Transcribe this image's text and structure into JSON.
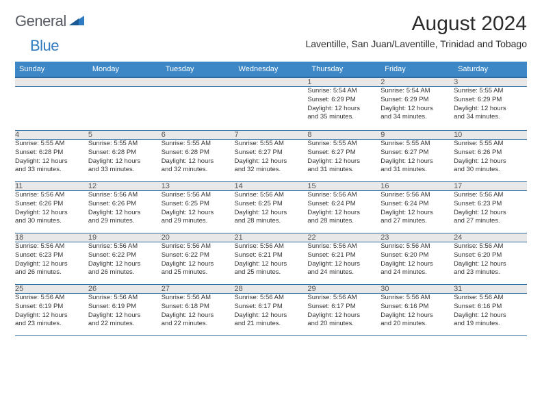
{
  "brand": {
    "part1": "General",
    "part2": "Blue",
    "color_gray": "#555a63",
    "color_blue": "#2f7bbf"
  },
  "title": "August 2024",
  "location": "Laventille, San Juan/Laventille, Trinidad and Tobago",
  "colors": {
    "header_bg": "#3d87c7",
    "header_border": "#2a6aa0",
    "daynum_bg": "#e8e8e8",
    "text": "#2b2b2b"
  },
  "weekdays": [
    "Sunday",
    "Monday",
    "Tuesday",
    "Wednesday",
    "Thursday",
    "Friday",
    "Saturday"
  ],
  "weeks": [
    [
      null,
      null,
      null,
      null,
      {
        "n": "1",
        "sr": "5:54 AM",
        "ss": "6:29 PM",
        "dl": "12 hours and 35 minutes."
      },
      {
        "n": "2",
        "sr": "5:54 AM",
        "ss": "6:29 PM",
        "dl": "12 hours and 34 minutes."
      },
      {
        "n": "3",
        "sr": "5:55 AM",
        "ss": "6:29 PM",
        "dl": "12 hours and 34 minutes."
      }
    ],
    [
      {
        "n": "4",
        "sr": "5:55 AM",
        "ss": "6:28 PM",
        "dl": "12 hours and 33 minutes."
      },
      {
        "n": "5",
        "sr": "5:55 AM",
        "ss": "6:28 PM",
        "dl": "12 hours and 33 minutes."
      },
      {
        "n": "6",
        "sr": "5:55 AM",
        "ss": "6:28 PM",
        "dl": "12 hours and 32 minutes."
      },
      {
        "n": "7",
        "sr": "5:55 AM",
        "ss": "6:27 PM",
        "dl": "12 hours and 32 minutes."
      },
      {
        "n": "8",
        "sr": "5:55 AM",
        "ss": "6:27 PM",
        "dl": "12 hours and 31 minutes."
      },
      {
        "n": "9",
        "sr": "5:55 AM",
        "ss": "6:27 PM",
        "dl": "12 hours and 31 minutes."
      },
      {
        "n": "10",
        "sr": "5:55 AM",
        "ss": "6:26 PM",
        "dl": "12 hours and 30 minutes."
      }
    ],
    [
      {
        "n": "11",
        "sr": "5:56 AM",
        "ss": "6:26 PM",
        "dl": "12 hours and 30 minutes."
      },
      {
        "n": "12",
        "sr": "5:56 AM",
        "ss": "6:26 PM",
        "dl": "12 hours and 29 minutes."
      },
      {
        "n": "13",
        "sr": "5:56 AM",
        "ss": "6:25 PM",
        "dl": "12 hours and 29 minutes."
      },
      {
        "n": "14",
        "sr": "5:56 AM",
        "ss": "6:25 PM",
        "dl": "12 hours and 28 minutes."
      },
      {
        "n": "15",
        "sr": "5:56 AM",
        "ss": "6:24 PM",
        "dl": "12 hours and 28 minutes."
      },
      {
        "n": "16",
        "sr": "5:56 AM",
        "ss": "6:24 PM",
        "dl": "12 hours and 27 minutes."
      },
      {
        "n": "17",
        "sr": "5:56 AM",
        "ss": "6:23 PM",
        "dl": "12 hours and 27 minutes."
      }
    ],
    [
      {
        "n": "18",
        "sr": "5:56 AM",
        "ss": "6:23 PM",
        "dl": "12 hours and 26 minutes."
      },
      {
        "n": "19",
        "sr": "5:56 AM",
        "ss": "6:22 PM",
        "dl": "12 hours and 26 minutes."
      },
      {
        "n": "20",
        "sr": "5:56 AM",
        "ss": "6:22 PM",
        "dl": "12 hours and 25 minutes."
      },
      {
        "n": "21",
        "sr": "5:56 AM",
        "ss": "6:21 PM",
        "dl": "12 hours and 25 minutes."
      },
      {
        "n": "22",
        "sr": "5:56 AM",
        "ss": "6:21 PM",
        "dl": "12 hours and 24 minutes."
      },
      {
        "n": "23",
        "sr": "5:56 AM",
        "ss": "6:20 PM",
        "dl": "12 hours and 24 minutes."
      },
      {
        "n": "24",
        "sr": "5:56 AM",
        "ss": "6:20 PM",
        "dl": "12 hours and 23 minutes."
      }
    ],
    [
      {
        "n": "25",
        "sr": "5:56 AM",
        "ss": "6:19 PM",
        "dl": "12 hours and 23 minutes."
      },
      {
        "n": "26",
        "sr": "5:56 AM",
        "ss": "6:19 PM",
        "dl": "12 hours and 22 minutes."
      },
      {
        "n": "27",
        "sr": "5:56 AM",
        "ss": "6:18 PM",
        "dl": "12 hours and 22 minutes."
      },
      {
        "n": "28",
        "sr": "5:56 AM",
        "ss": "6:17 PM",
        "dl": "12 hours and 21 minutes."
      },
      {
        "n": "29",
        "sr": "5:56 AM",
        "ss": "6:17 PM",
        "dl": "12 hours and 20 minutes."
      },
      {
        "n": "30",
        "sr": "5:56 AM",
        "ss": "6:16 PM",
        "dl": "12 hours and 20 minutes."
      },
      {
        "n": "31",
        "sr": "5:56 AM",
        "ss": "6:16 PM",
        "dl": "12 hours and 19 minutes."
      }
    ]
  ],
  "labels": {
    "sunrise": "Sunrise:",
    "sunset": "Sunset:",
    "daylight": "Daylight:"
  }
}
